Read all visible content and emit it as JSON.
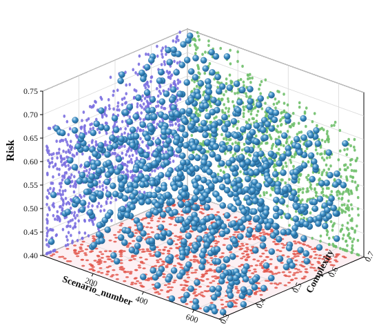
{
  "chart_data": {
    "type": "scatter",
    "variant": "3d-scatter-with-projections",
    "xlabel": "Scenario_number",
    "ylabel": "Complexity",
    "zlabel": "Risk",
    "x_ticks": [
      "200",
      "400",
      "600"
    ],
    "y_ticks": [
      "0.3",
      "0.4",
      "0.5",
      "0.6",
      "0.7"
    ],
    "z_ticks": [
      "0.40",
      "0.45",
      "0.50",
      "0.55",
      "0.60",
      "0.65",
      "0.70",
      "0.75"
    ],
    "xlim": [
      0,
      700
    ],
    "ylim": [
      0.3,
      0.7
    ],
    "zlim": [
      0.4,
      0.75
    ],
    "grid": true,
    "projections": {
      "xz_wall_color": "#7b6fe0",
      "yz_wall_color": "#6fbf6a",
      "xy_floor_color": "#e2574c"
    },
    "point_color": "#3d8fc6",
    "point_highlight_color": "#c9e6f7",
    "point_shadow_color": "#1d5b8a",
    "sample_points": [
      {
        "x": 20,
        "y": 0.31,
        "z": 0.43
      },
      {
        "x": 60,
        "y": 0.36,
        "z": 0.55
      },
      {
        "x": 90,
        "y": 0.48,
        "z": 0.61
      },
      {
        "x": 120,
        "y": 0.52,
        "z": 0.66
      },
      {
        "x": 150,
        "y": 0.41,
        "z": 0.58
      },
      {
        "x": 180,
        "y": 0.57,
        "z": 0.63
      },
      {
        "x": 210,
        "y": 0.45,
        "z": 0.52
      },
      {
        "x": 240,
        "y": 0.62,
        "z": 0.69
      },
      {
        "x": 270,
        "y": 0.38,
        "z": 0.49
      },
      {
        "x": 300,
        "y": 0.55,
        "z": 0.57
      },
      {
        "x": 330,
        "y": 0.49,
        "z": 0.46
      },
      {
        "x": 360,
        "y": 0.66,
        "z": 0.6
      },
      {
        "x": 390,
        "y": 0.43,
        "z": 0.54
      },
      {
        "x": 420,
        "y": 0.59,
        "z": 0.51
      },
      {
        "x": 450,
        "y": 0.34,
        "z": 0.47
      },
      {
        "x": 480,
        "y": 0.51,
        "z": 0.56
      },
      {
        "x": 510,
        "y": 0.47,
        "z": 0.44
      },
      {
        "x": 540,
        "y": 0.63,
        "z": 0.5
      },
      {
        "x": 570,
        "y": 0.39,
        "z": 0.45
      },
      {
        "x": 600,
        "y": 0.56,
        "z": 0.48
      },
      {
        "x": 630,
        "y": 0.44,
        "z": 0.42
      },
      {
        "x": 660,
        "y": 0.53,
        "z": 0.43
      },
      {
        "x": 100,
        "y": 0.6,
        "z": 0.71
      },
      {
        "x": 200,
        "y": 0.67,
        "z": 0.74
      },
      {
        "x": 250,
        "y": 0.32,
        "z": 0.59
      },
      {
        "x": 320,
        "y": 0.42,
        "z": 0.62
      },
      {
        "x": 380,
        "y": 0.58,
        "z": 0.53
      },
      {
        "x": 440,
        "y": 0.46,
        "z": 0.58
      },
      {
        "x": 520,
        "y": 0.54,
        "z": 0.52
      },
      {
        "x": 610,
        "y": 0.37,
        "z": 0.44
      },
      {
        "x": 140,
        "y": 0.5,
        "z": 0.6
      },
      {
        "x": 290,
        "y": 0.64,
        "z": 0.55
      }
    ],
    "point_count_rendered": 900
  }
}
